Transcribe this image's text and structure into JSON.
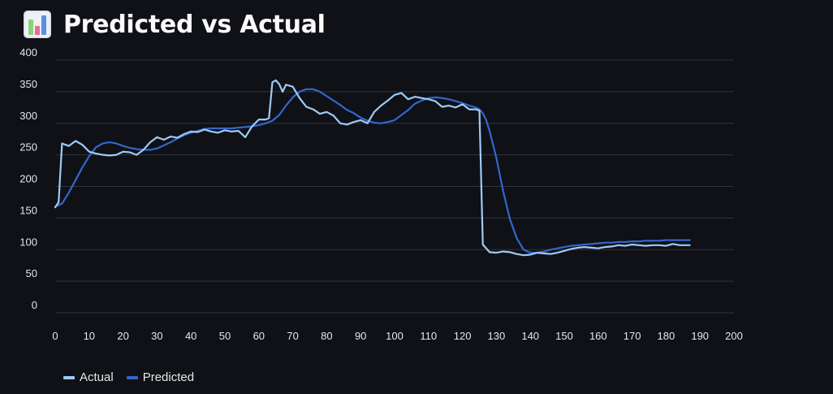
{
  "header": {
    "title": "Predicted vs Actual",
    "icon": "bar-chart-icon"
  },
  "colors": {
    "background": "#0f1117",
    "grid": "#31333b",
    "tick": "#e6e6e6",
    "actual": "#9ecbf5",
    "predicted": "#3366cc"
  },
  "chart_data": {
    "type": "line",
    "title": "Predicted vs Actual",
    "xlabel": "",
    "ylabel": "",
    "xlim": [
      0,
      200
    ],
    "ylim": [
      0,
      400
    ],
    "xticks": [
      0,
      10,
      20,
      30,
      40,
      50,
      60,
      70,
      80,
      90,
      100,
      110,
      120,
      130,
      140,
      150,
      160,
      170,
      180,
      190,
      200
    ],
    "yticks": [
      0,
      50,
      100,
      150,
      200,
      250,
      300,
      350,
      400
    ],
    "grid": true,
    "legend_position": "bottom-left",
    "series": [
      {
        "name": "Actual",
        "x": [
          0,
          1,
          2,
          4,
          6,
          8,
          10,
          12,
          14,
          16,
          18,
          20,
          22,
          24,
          26,
          28,
          30,
          32,
          34,
          36,
          38,
          40,
          42,
          44,
          46,
          48,
          50,
          52,
          54,
          56,
          58,
          60,
          62,
          63,
          64,
          65,
          66,
          67,
          68,
          70,
          72,
          74,
          76,
          78,
          80,
          82,
          84,
          86,
          88,
          90,
          92,
          94,
          96,
          98,
          100,
          102,
          104,
          106,
          108,
          110,
          112,
          114,
          116,
          118,
          120,
          122,
          124,
          125,
          126,
          128,
          130,
          132,
          134,
          136,
          138,
          140,
          142,
          144,
          146,
          148,
          150,
          152,
          154,
          156,
          158,
          160,
          162,
          164,
          166,
          168,
          170,
          172,
          174,
          176,
          178,
          180,
          182,
          184,
          186,
          187
        ],
        "values": [
          167,
          175,
          268,
          264,
          272,
          266,
          255,
          252,
          250,
          249,
          250,
          255,
          254,
          250,
          258,
          270,
          278,
          274,
          279,
          277,
          283,
          287,
          286,
          290,
          287,
          285,
          289,
          287,
          288,
          278,
          295,
          306,
          306,
          308,
          365,
          368,
          362,
          350,
          361,
          358,
          340,
          326,
          322,
          315,
          318,
          312,
          300,
          298,
          302,
          305,
          300,
          318,
          328,
          336,
          345,
          348,
          338,
          342,
          340,
          338,
          335,
          326,
          328,
          325,
          330,
          322,
          322,
          320,
          108,
          96,
          95,
          97,
          96,
          93,
          91,
          92,
          95,
          94,
          93,
          95,
          98,
          101,
          103,
          104,
          103,
          102,
          104,
          105,
          107,
          106,
          108,
          107,
          106,
          107,
          107,
          106,
          109,
          107,
          107,
          107
        ]
      },
      {
        "name": "Predicted",
        "x": [
          0,
          2,
          4,
          6,
          8,
          10,
          12,
          14,
          16,
          18,
          20,
          22,
          24,
          26,
          28,
          30,
          32,
          34,
          36,
          38,
          40,
          42,
          44,
          46,
          48,
          50,
          52,
          54,
          56,
          58,
          60,
          62,
          64,
          66,
          68,
          70,
          72,
          74,
          76,
          78,
          80,
          82,
          84,
          86,
          88,
          90,
          92,
          94,
          96,
          98,
          100,
          102,
          104,
          106,
          108,
          110,
          112,
          114,
          116,
          118,
          120,
          122,
          124,
          125,
          126,
          127,
          128,
          130,
          132,
          134,
          136,
          138,
          140,
          142,
          144,
          146,
          148,
          150,
          152,
          154,
          156,
          158,
          160,
          162,
          164,
          166,
          168,
          170,
          172,
          174,
          176,
          178,
          180,
          182,
          184,
          186,
          187
        ],
        "values": [
          168,
          173,
          190,
          210,
          230,
          248,
          262,
          268,
          270,
          268,
          264,
          261,
          259,
          258,
          258,
          260,
          265,
          270,
          276,
          281,
          285,
          288,
          291,
          292,
          292,
          292,
          292,
          293,
          294,
          295,
          297,
          300,
          304,
          313,
          328,
          341,
          350,
          354,
          354,
          350,
          343,
          336,
          329,
          321,
          316,
          309,
          304,
          301,
          300,
          302,
          305,
          313,
          321,
          331,
          336,
          340,
          341,
          340,
          338,
          335,
          332,
          328,
          325,
          322,
          316,
          305,
          288,
          245,
          192,
          148,
          118,
          100,
          95,
          95,
          97,
          100,
          102,
          104,
          106,
          107,
          108,
          109,
          110,
          111,
          111,
          112,
          112,
          113,
          113,
          114,
          114,
          114,
          115,
          115,
          115,
          115,
          115
        ]
      }
    ]
  }
}
